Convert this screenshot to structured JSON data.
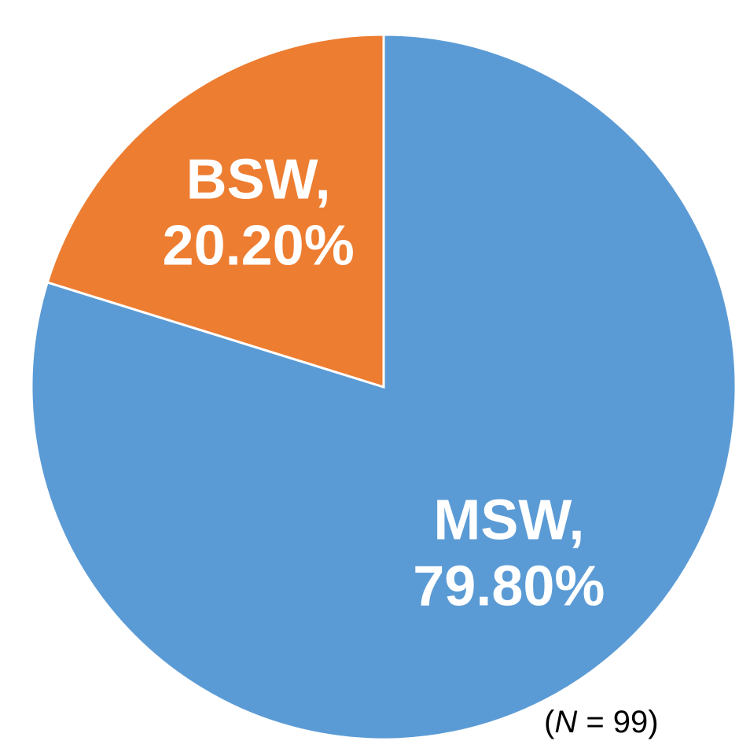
{
  "chart_data": {
    "type": "pie",
    "categories": [
      "MSW,",
      "BSW,"
    ],
    "values": [
      79.8,
      20.2
    ],
    "value_labels": [
      "79.80%",
      "20.20%"
    ],
    "colors": [
      "#5b9bd5",
      "#ed7d31"
    ],
    "annotation": [
      "(",
      "N",
      " = 99)"
    ]
  }
}
